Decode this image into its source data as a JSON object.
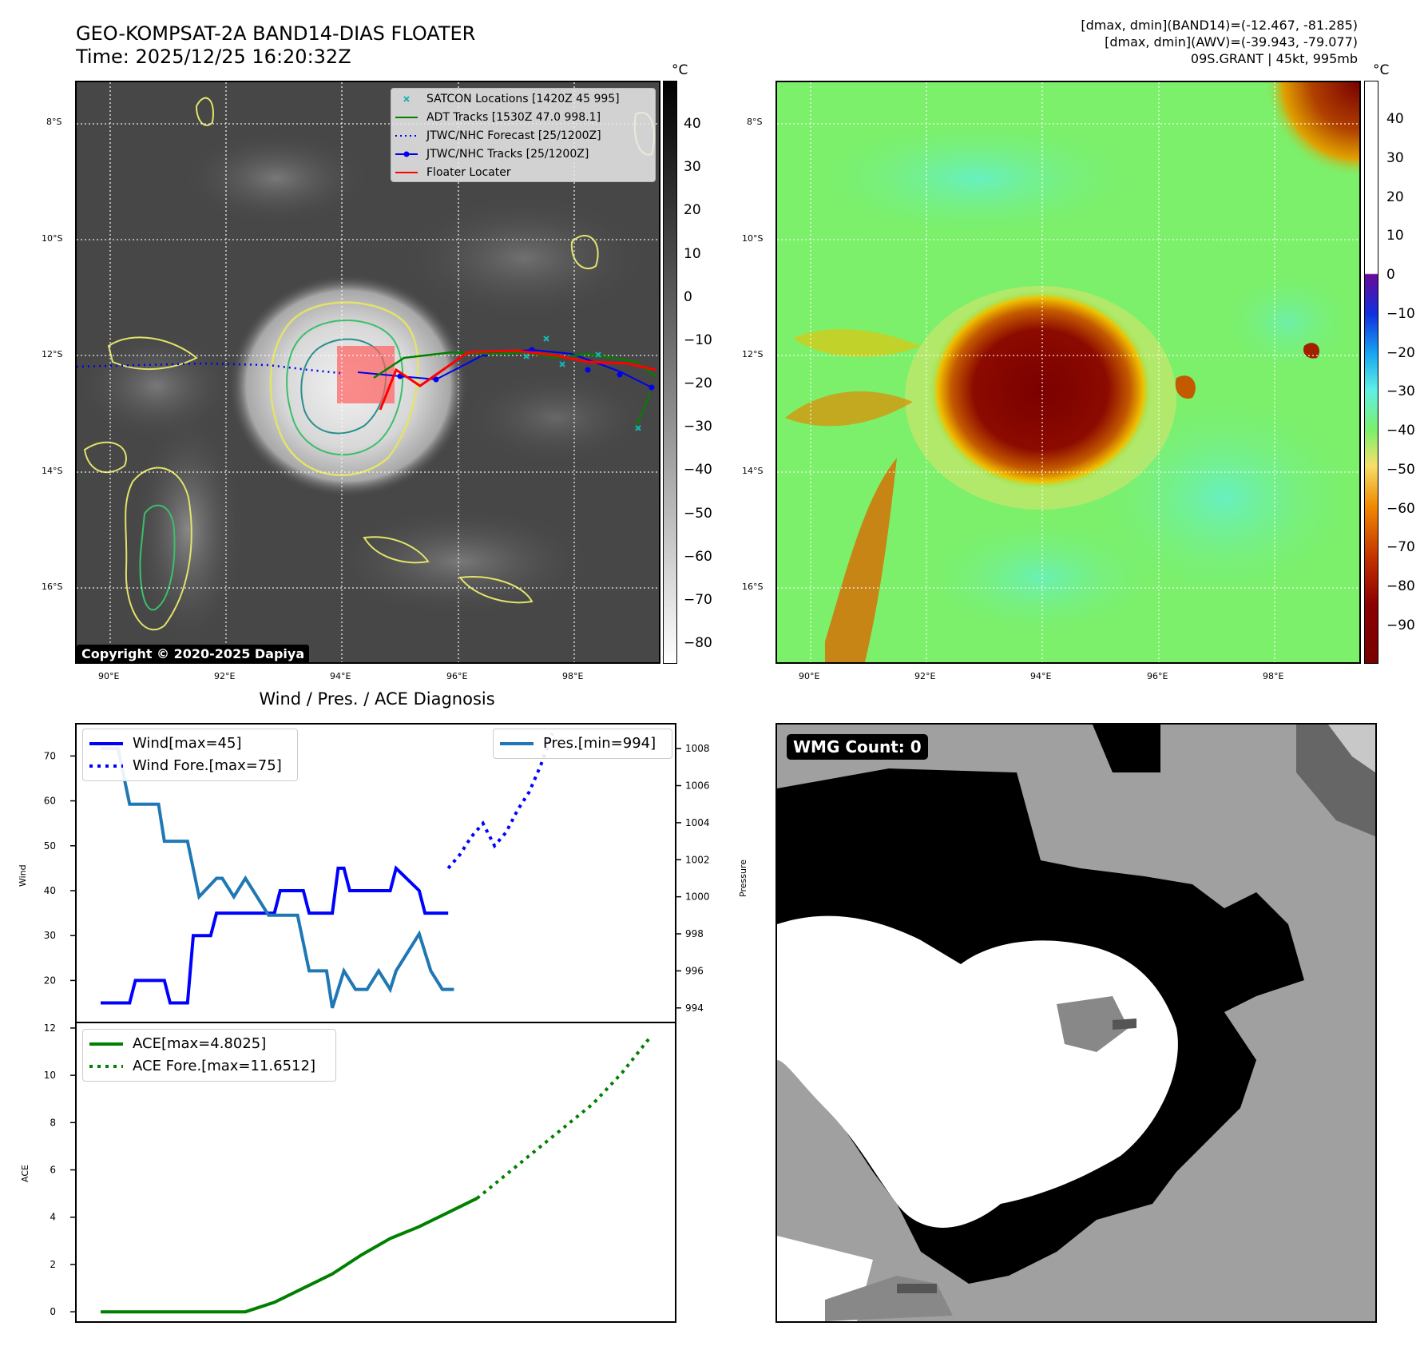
{
  "header": {
    "title_line1": "GEO-KOMPSAT-2A BAND14-DIAS FLOATER",
    "title_line2": "Time: 2025/12/25 16:20:32Z",
    "info_line1": "[dmax, dmin](BAND14)=(-12.467, -81.285)",
    "info_line2": "[dmax, dmin](AWV)=(-39.943, -79.077)",
    "info_line3": "09S.GRANT | 45kt, 995mb"
  },
  "map": {
    "lat_labels": [
      "8°S",
      "10°S",
      "12°S",
      "14°S",
      "16°S"
    ],
    "lon_labels": [
      "90°E",
      "92°E",
      "94°E",
      "96°E",
      "98°E"
    ],
    "copyright": "Copyright © 2020-2025 Dapiya",
    "legend": [
      {
        "label": "SATCON Locations [1420Z 45 995]",
        "color": "#1ab5b5",
        "style": "x"
      },
      {
        "label": "ADT Tracks [1530Z 47.0 998.1]",
        "color": "#008000",
        "style": "line"
      },
      {
        "label": "JTWC/NHC Forecast [25/1200Z]",
        "color": "#0000ee",
        "style": "dotted"
      },
      {
        "label": "JTWC/NHC Tracks [25/1200Z]",
        "color": "#0000ee",
        "style": "dotline"
      },
      {
        "label": "Floater Locater",
        "color": "#ff0000",
        "style": "line"
      }
    ]
  },
  "colorbar_ir": {
    "unit": "°C",
    "ticks": [
      "40",
      "30",
      "20",
      "10",
      "0",
      "−10",
      "−20",
      "−30",
      "−40",
      "−50",
      "−60",
      "−70",
      "−80"
    ]
  },
  "colorbar_awv": {
    "unit": "°C",
    "ticks": [
      "40",
      "30",
      "20",
      "10",
      "0",
      "−10",
      "−20",
      "−30",
      "−40",
      "−50",
      "−60",
      "−70",
      "−80",
      "−90"
    ]
  },
  "diag": {
    "title": "Wind / Pres. / ACE Diagnosis",
    "wind_ylabel": "Wind",
    "pres_ylabel": "Pressure",
    "ace_ylabel": "ACE",
    "wind_ticks": [
      "70",
      "60",
      "50",
      "40",
      "30",
      "20"
    ],
    "pres_ticks": [
      "1008",
      "1006",
      "1004",
      "1002",
      "1000",
      "998",
      "996",
      "994"
    ],
    "ace_ticks": [
      "12",
      "10",
      "8",
      "6",
      "4",
      "2",
      "0"
    ],
    "legend_wind": "Wind[max=45]",
    "legend_wind_fore": "Wind Fore.[max=75]",
    "legend_pres": "Pres.[min=994]",
    "legend_ace": "ACE[max=4.8025]",
    "legend_ace_fore": "ACE Fore.[max=11.6512]"
  },
  "wmg": {
    "label": "WMG Count: 0"
  },
  "chart_data": [
    {
      "type": "line",
      "name": "wind",
      "title": "Wind / Pres. / ACE Diagnosis",
      "ylabel": "Wind",
      "ylim": [
        11,
        77
      ],
      "series": [
        {
          "name": "Wind[max=45]",
          "color": "#0000ff",
          "x": [
            0,
            5,
            6,
            11,
            12,
            15,
            16,
            19,
            20,
            25,
            26,
            30,
            31,
            35,
            36,
            40,
            41,
            42,
            43,
            45,
            46,
            50,
            51,
            55,
            56,
            60
          ],
          "values": [
            15,
            15,
            20,
            20,
            15,
            15,
            30,
            30,
            35,
            35,
            35,
            35,
            40,
            40,
            35,
            35,
            45,
            45,
            40,
            40,
            40,
            40,
            45,
            40,
            35,
            35
          ]
        },
        {
          "name": "Wind Fore.[max=75]",
          "color": "#0000ff",
          "x": [
            60,
            62,
            64,
            66,
            68,
            70,
            72,
            74,
            76,
            78
          ],
          "values": [
            45,
            48,
            52,
            55,
            50,
            53,
            58,
            62,
            68,
            75
          ]
        }
      ]
    },
    {
      "type": "line",
      "name": "pressure",
      "ylabel": "Pressure",
      "ylim": [
        993.3,
        1009.3
      ],
      "series": [
        {
          "name": "Pres.[min=994]",
          "color": "#1f77b4",
          "x": [
            0,
            3,
            5,
            6,
            10,
            11,
            15,
            17,
            20,
            21,
            23,
            25,
            27,
            29,
            32,
            34,
            36,
            39,
            40,
            42,
            44,
            46,
            48,
            50,
            51,
            53,
            55,
            57,
            59,
            61
          ],
          "values": [
            1008,
            1008,
            1005,
            1005,
            1005,
            1003,
            1003,
            1000,
            1001,
            1001,
            1000,
            1001,
            1000,
            999,
            999,
            999,
            996,
            996,
            994,
            996,
            995,
            995,
            996,
            995,
            996,
            997,
            998,
            996,
            995,
            995
          ]
        }
      ]
    },
    {
      "type": "line",
      "name": "ace",
      "ylabel": "ACE",
      "ylim": [
        -0.4,
        12.2
      ],
      "series": [
        {
          "name": "ACE[max=4.8025]",
          "color": "#008000",
          "x": [
            0,
            5,
            10,
            15,
            20,
            25,
            30,
            35,
            40,
            45,
            50,
            55,
            60,
            65
          ],
          "values": [
            0,
            0,
            0,
            0,
            0,
            0,
            0.4,
            1.0,
            1.6,
            2.4,
            3.1,
            3.6,
            4.2,
            4.8
          ]
        },
        {
          "name": "ACE Fore.[max=11.6512]",
          "color": "#008000",
          "x": [
            65,
            70,
            75,
            80,
            85,
            90,
            95
          ],
          "values": [
            4.8,
            5.8,
            6.8,
            7.8,
            8.8,
            10.1,
            11.65
          ]
        }
      ]
    }
  ]
}
